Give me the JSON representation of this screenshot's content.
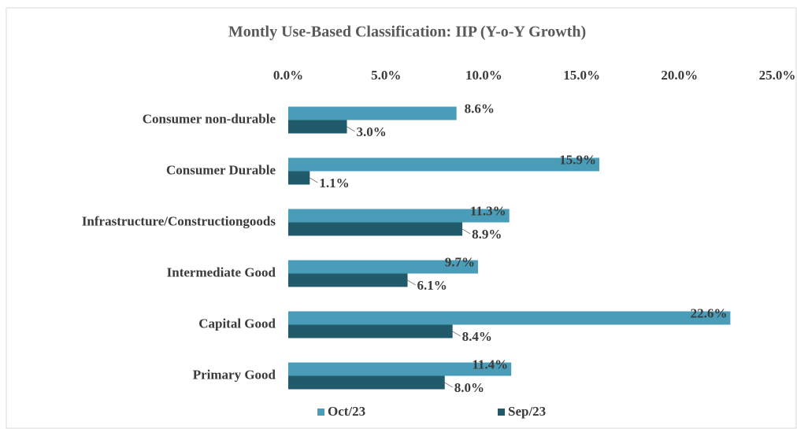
{
  "chart_data": {
    "type": "hbar",
    "title": "Montly Use-Based Classification: IIP (Y-o-Y Growth)",
    "categories": [
      "Consumer non-durable",
      "Consumer Durable",
      "Infrastructure/Constructiongoods",
      "Intermediate Good",
      "Capital Good",
      "Primary Good"
    ],
    "series": [
      {
        "name": "Oct/23",
        "color": "#4a9db8",
        "values": [
          8.6,
          15.9,
          11.3,
          9.7,
          22.6,
          11.4
        ],
        "value_labels": [
          "8.6%",
          "15.9%",
          "11.3%",
          "9.7%",
          "22.6%",
          "11.4%"
        ]
      },
      {
        "name": "Sep/23",
        "color": "#215a6a",
        "values": [
          3.0,
          1.1,
          8.9,
          6.1,
          8.4,
          8.0
        ],
        "value_labels": [
          "3.0%",
          "1.1%",
          "8.9%",
          "6.1%",
          "8.4%",
          "8.0%"
        ]
      }
    ],
    "xlim": [
      0,
      25
    ],
    "xticks": [
      {
        "value": 0,
        "label": "0.0%"
      },
      {
        "value": 5,
        "label": "5.0%"
      },
      {
        "value": 10,
        "label": "10.0%"
      },
      {
        "value": 15,
        "label": "15.0%"
      },
      {
        "value": 20,
        "label": "20.0%"
      },
      {
        "value": 25,
        "label": "25.0%"
      }
    ],
    "grid": false,
    "legend": "bottom"
  }
}
